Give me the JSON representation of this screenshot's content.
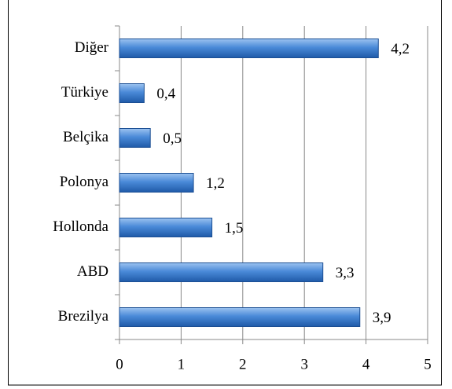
{
  "chart_data": {
    "type": "bar",
    "orientation": "horizontal",
    "categories": [
      "Diğer",
      "Türkiye",
      "Belçika",
      "Polonya",
      "Hollonda",
      "ABD",
      "Brezilya"
    ],
    "values": [
      4.2,
      0.4,
      0.5,
      1.2,
      1.5,
      3.3,
      3.9
    ],
    "value_labels": [
      "4,2",
      "0,4",
      "0,5",
      "1,2",
      "1,5",
      "3,3",
      "3,9"
    ],
    "color": "#3f7fd0",
    "xlim": [
      0,
      5
    ],
    "xticks": [
      0,
      1,
      2,
      3,
      4,
      5
    ],
    "grid": true
  }
}
